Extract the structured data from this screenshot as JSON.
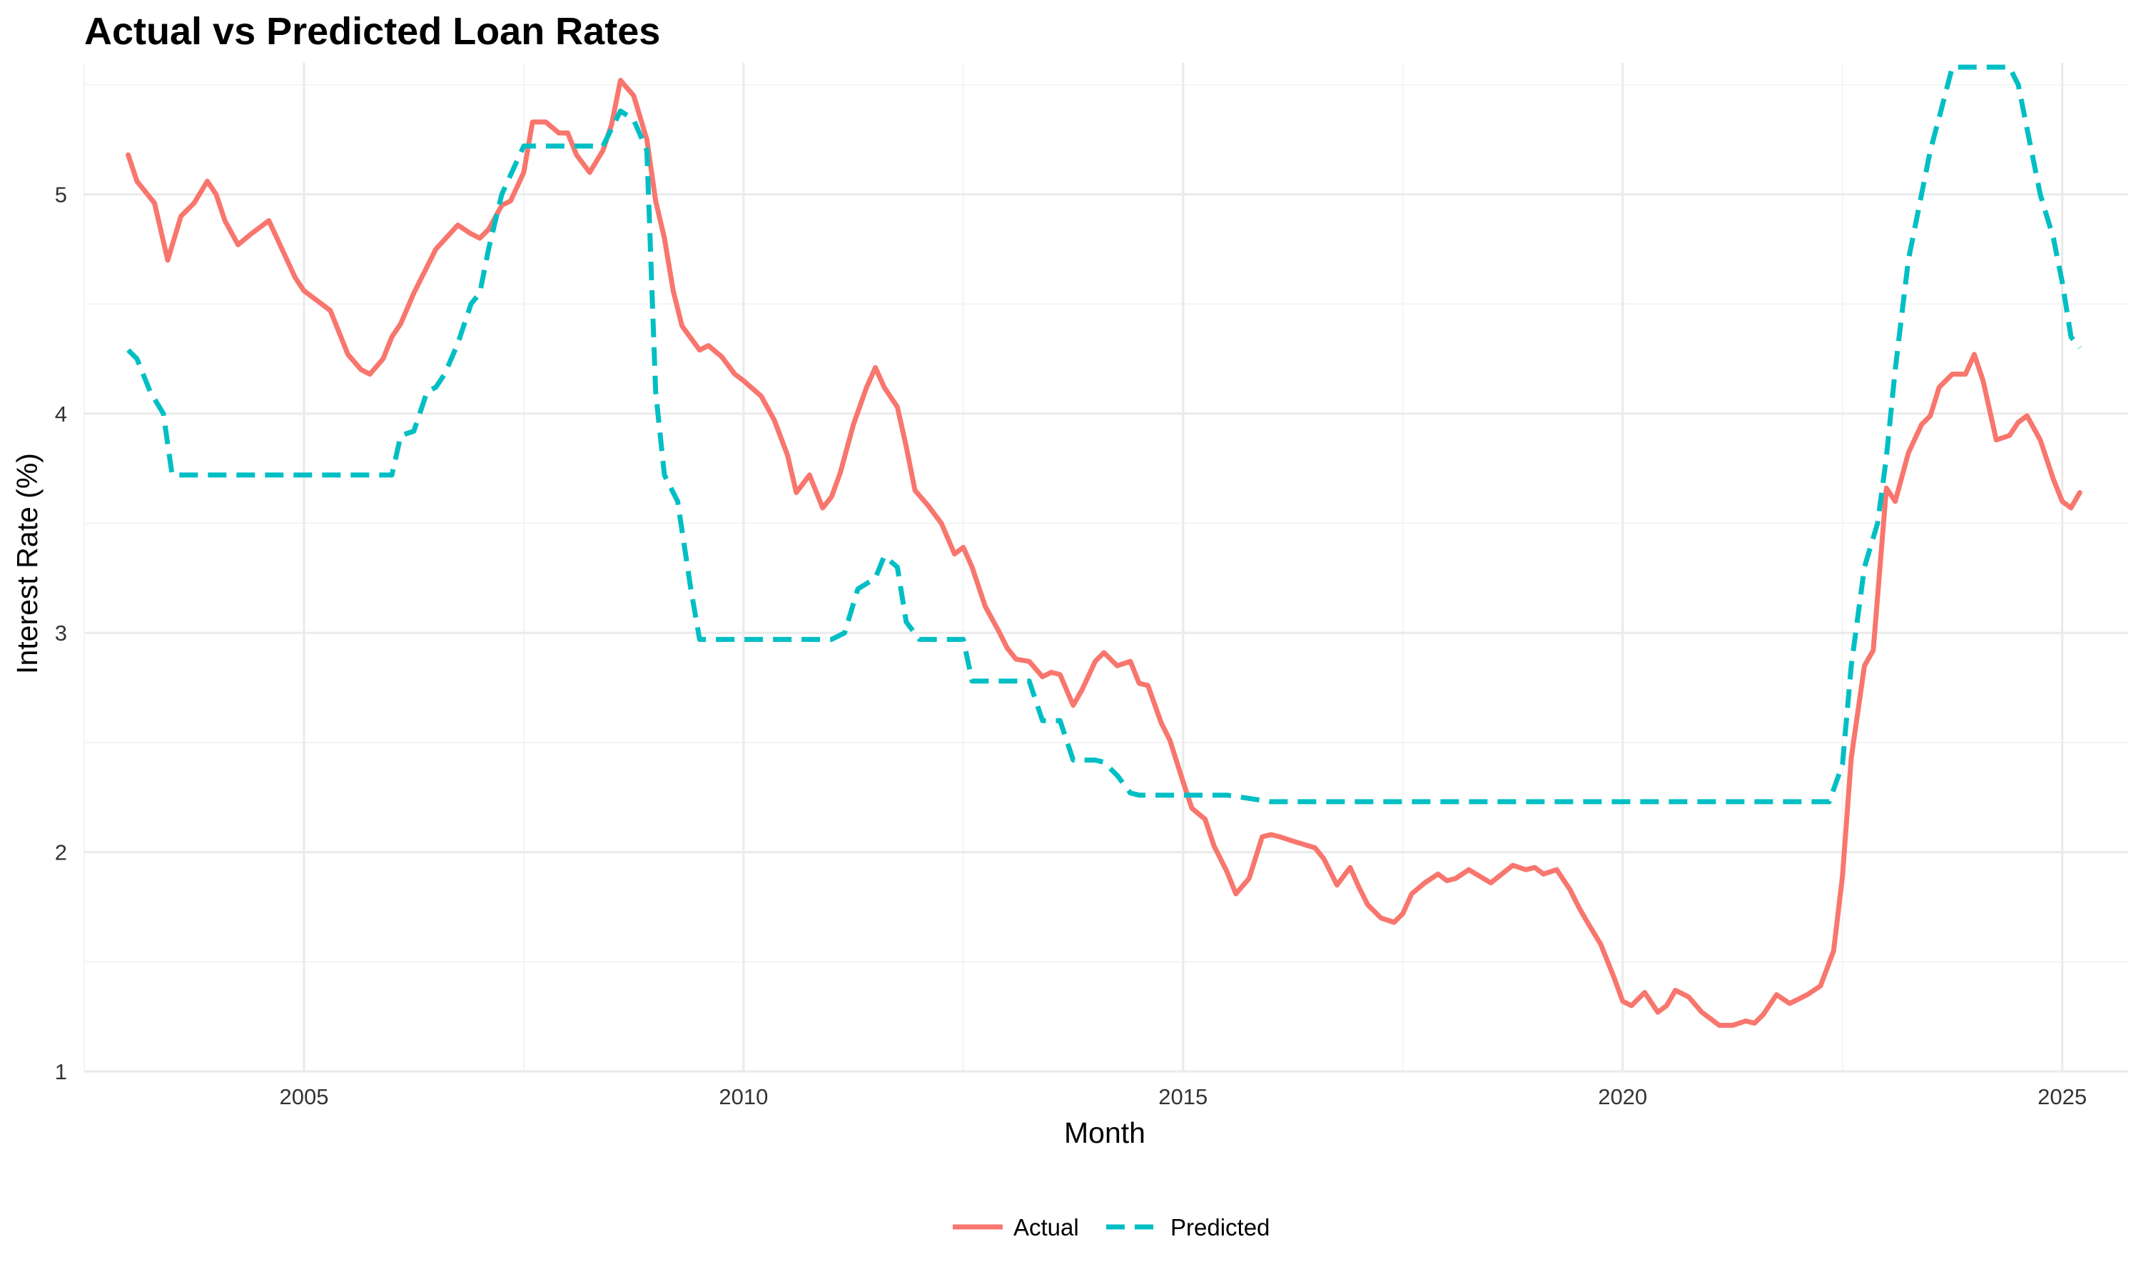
{
  "chart_data": {
    "type": "line",
    "title": "Actual vs Predicted Loan Rates",
    "xlabel": "Month",
    "ylabel": "Interest Rate (%)",
    "x_ticks": [
      "2005",
      "2010",
      "2015",
      "2020",
      "2025"
    ],
    "y_ticks": [
      "1",
      "2",
      "3",
      "4",
      "5"
    ],
    "xlim": [
      2002.5,
      2025.75
    ],
    "ylim": [
      1.0,
      5.6
    ],
    "grid": true,
    "legend_position": "bottom",
    "series": [
      {
        "name": "Actual",
        "color": "#F8766D",
        "dash": "solid",
        "x": [
          2003.0,
          2003.1,
          2003.3,
          2003.45,
          2003.6,
          2003.75,
          2003.9,
          2004.0,
          2004.1,
          2004.25,
          2004.4,
          2004.6,
          2004.75,
          2004.9,
          2005.0,
          2005.2,
          2005.3,
          2005.5,
          2005.65,
          2005.75,
          2005.9,
          2006.0,
          2006.1,
          2006.25,
          2006.4,
          2006.5,
          2006.75,
          2006.9,
          2007.0,
          2007.1,
          2007.25,
          2007.35,
          2007.5,
          2007.6,
          2007.75,
          2007.9,
          2008.0,
          2008.1,
          2008.25,
          2008.4,
          2008.5,
          2008.6,
          2008.75,
          2008.9,
          2009.0,
          2009.1,
          2009.2,
          2009.3,
          2009.5,
          2009.6,
          2009.75,
          2009.9,
          2010.0,
          2010.2,
          2010.35,
          2010.5,
          2010.6,
          2010.75,
          2010.9,
          2011.0,
          2011.1,
          2011.25,
          2011.4,
          2011.5,
          2011.6,
          2011.75,
          2011.85,
          2011.95,
          2012.1,
          2012.25,
          2012.4,
          2012.5,
          2012.6,
          2012.75,
          2012.9,
          2013.0,
          2013.1,
          2013.25,
          2013.4,
          2013.5,
          2013.6,
          2013.75,
          2013.85,
          2014.0,
          2014.1,
          2014.25,
          2014.4,
          2014.5,
          2014.6,
          2014.75,
          2014.85,
          2015.0,
          2015.1,
          2015.25,
          2015.35,
          2015.5,
          2015.6,
          2015.75,
          2015.9,
          2016.0,
          2016.1,
          2016.25,
          2016.5,
          2016.6,
          2016.75,
          2016.9,
          2017.0,
          2017.1,
          2017.25,
          2017.4,
          2017.5,
          2017.6,
          2017.75,
          2017.9,
          2018.0,
          2018.1,
          2018.25,
          2018.5,
          2018.75,
          2018.9,
          2019.0,
          2019.1,
          2019.25,
          2019.4,
          2019.5,
          2019.6,
          2019.75,
          2019.9,
          2020.0,
          2020.1,
          2020.25,
          2020.4,
          2020.5,
          2020.6,
          2020.75,
          2020.9,
          2021.0,
          2021.1,
          2021.25,
          2021.4,
          2021.5,
          2021.6,
          2021.75,
          2021.9,
          2022.0,
          2022.1,
          2022.25,
          2022.4,
          2022.5,
          2022.6,
          2022.75,
          2022.85,
          2023.0,
          2023.1,
          2023.25,
          2023.4,
          2023.5,
          2023.6,
          2023.75,
          2023.9,
          2024.0,
          2024.1,
          2024.25,
          2024.4,
          2024.5,
          2024.6,
          2024.75,
          2024.9,
          2025.0,
          2025.1,
          2025.2
        ],
        "y": [
          5.18,
          5.06,
          4.96,
          4.7,
          4.9,
          4.96,
          5.06,
          5.0,
          4.88,
          4.77,
          4.82,
          4.88,
          4.75,
          4.62,
          4.56,
          4.5,
          4.47,
          4.27,
          4.2,
          4.18,
          4.25,
          4.35,
          4.41,
          4.55,
          4.67,
          4.75,
          4.86,
          4.82,
          4.8,
          4.84,
          4.95,
          4.97,
          5.1,
          5.33,
          5.33,
          5.28,
          5.28,
          5.18,
          5.1,
          5.2,
          5.32,
          5.52,
          5.45,
          5.25,
          4.97,
          4.8,
          4.56,
          4.4,
          4.29,
          4.31,
          4.26,
          4.18,
          4.15,
          4.08,
          3.97,
          3.81,
          3.64,
          3.72,
          3.57,
          3.62,
          3.73,
          3.95,
          4.12,
          4.21,
          4.12,
          4.03,
          3.85,
          3.65,
          3.58,
          3.5,
          3.36,
          3.39,
          3.3,
          3.12,
          3.01,
          2.93,
          2.88,
          2.87,
          2.8,
          2.82,
          2.81,
          2.67,
          2.74,
          2.87,
          2.91,
          2.85,
          2.87,
          2.77,
          2.76,
          2.59,
          2.51,
          2.32,
          2.2,
          2.15,
          2.03,
          1.91,
          1.81,
          1.88,
          2.07,
          2.08,
          2.07,
          2.05,
          2.02,
          1.97,
          1.85,
          1.93,
          1.84,
          1.76,
          1.7,
          1.68,
          1.72,
          1.81,
          1.86,
          1.9,
          1.87,
          1.88,
          1.92,
          1.86,
          1.94,
          1.92,
          1.93,
          1.9,
          1.92,
          1.83,
          1.75,
          1.68,
          1.58,
          1.43,
          1.32,
          1.3,
          1.36,
          1.27,
          1.3,
          1.37,
          1.34,
          1.27,
          1.24,
          1.21,
          1.21,
          1.23,
          1.22,
          1.26,
          1.35,
          1.31,
          1.33,
          1.35,
          1.39,
          1.55,
          1.89,
          2.43,
          2.85,
          2.92,
          3.66,
          3.6,
          3.82,
          3.95,
          3.99,
          4.12,
          4.18,
          4.18,
          4.27,
          4.15,
          3.88,
          3.9,
          3.96,
          3.99,
          3.88,
          3.7,
          3.6,
          3.57,
          3.64
        ],
        "labels_date": []
      },
      {
        "name": "Predicted",
        "color": "#00BFC4",
        "dash": "dashed",
        "x": [
          2003.0,
          2003.1,
          2003.25,
          2003.4,
          2003.5,
          2005.0,
          2005.5,
          2005.9,
          2006.0,
          2006.1,
          2006.25,
          2006.4,
          2006.5,
          2006.6,
          2006.75,
          2006.9,
          2007.0,
          2007.1,
          2007.25,
          2007.5,
          2008.0,
          2008.2,
          2008.4,
          2008.6,
          2008.75,
          2008.9,
          2009.0,
          2009.1,
          2009.25,
          2009.4,
          2009.5,
          2010.0,
          2010.5,
          2011.0,
          2011.15,
          2011.3,
          2011.5,
          2011.6,
          2011.75,
          2011.85,
          2012.0,
          2012.1,
          2012.25,
          2012.5,
          2012.6,
          2013.0,
          2013.25,
          2013.4,
          2013.5,
          2013.6,
          2013.75,
          2014.0,
          2014.1,
          2014.25,
          2014.4,
          2014.5,
          2014.6,
          2014.75,
          2015.0,
          2015.5,
          2016.0,
          2016.5,
          2017.0,
          2017.5,
          2018.0,
          2019.0,
          2020.0,
          2021.0,
          2022.0,
          2022.35,
          2022.5,
          2022.6,
          2022.75,
          2022.9,
          2023.0,
          2023.1,
          2023.25,
          2023.4,
          2023.5,
          2023.6,
          2023.75,
          2023.9,
          2024.0,
          2024.25,
          2024.4,
          2024.5,
          2024.6,
          2024.75,
          2024.9,
          2025.0,
          2025.1,
          2025.2
        ],
        "y": [
          4.29,
          4.25,
          4.1,
          4.0,
          3.72,
          3.72,
          3.72,
          3.72,
          3.72,
          3.9,
          3.92,
          4.1,
          4.12,
          4.18,
          4.32,
          4.5,
          4.55,
          4.75,
          5.0,
          5.22,
          5.22,
          5.22,
          5.22,
          5.38,
          5.34,
          5.2,
          4.1,
          3.72,
          3.6,
          3.2,
          2.97,
          2.97,
          2.97,
          2.97,
          3.0,
          3.2,
          3.25,
          3.35,
          3.3,
          3.05,
          2.97,
          2.97,
          2.97,
          2.97,
          2.78,
          2.78,
          2.78,
          2.6,
          2.6,
          2.6,
          2.42,
          2.42,
          2.41,
          2.35,
          2.27,
          2.26,
          2.26,
          2.26,
          2.26,
          2.26,
          2.23,
          2.23,
          2.23,
          2.23,
          2.23,
          2.23,
          2.23,
          2.23,
          2.23,
          2.23,
          2.4,
          2.85,
          3.3,
          3.5,
          3.8,
          4.2,
          4.7,
          5.0,
          5.2,
          5.35,
          5.58,
          5.58,
          5.58,
          5.58,
          5.58,
          5.5,
          5.3,
          5.0,
          4.8,
          4.6,
          4.35,
          4.3
        ]
      }
    ]
  }
}
